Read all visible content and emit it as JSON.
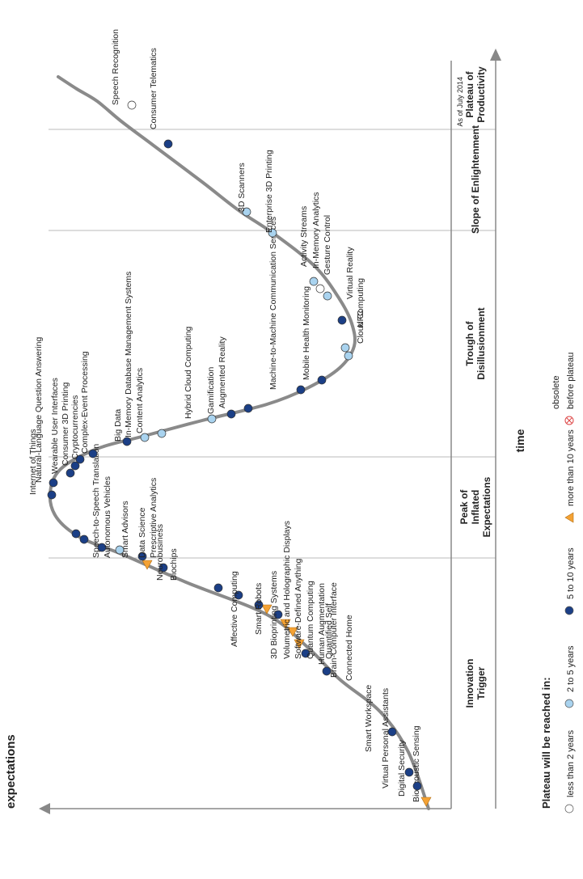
{
  "colors": {
    "curve": "#8a8a8a",
    "axis": "#555555",
    "less_than_2": "#ffffff",
    "two_to_5": "#a9d3ef",
    "five_to_10": "#1b3f86",
    "more_than_10": "#f4a234",
    "obsolete": "#e88a8a"
  },
  "chart_data": {
    "type": "scatter",
    "title": "",
    "ylabel": "expectations",
    "xlabel": "time",
    "as_of": "As of July 2014",
    "phases": [
      "Innovation Trigger",
      "Peak of Inflated Expectations",
      "Trough of Disillusionment",
      "Slope of Enlightenment",
      "Plateau of Productivity"
    ],
    "legend": {
      "title": "Plateau will be reached in:",
      "items": [
        {
          "label": "less than 2 years",
          "key": "less_than_2"
        },
        {
          "label": "2 to 5 years",
          "key": "two_to_5"
        },
        {
          "label": "5 to 10 years",
          "key": "five_to_10"
        },
        {
          "label": "more than 10 years",
          "key": "more_than_10"
        },
        {
          "label": "obsolete before plateau",
          "key": "obsolete"
        }
      ]
    },
    "technologies": [
      {
        "name": "Bioacoustic Sensing",
        "plateau": "more_than_10"
      },
      {
        "name": "Digital Security",
        "plateau": "five_to_10"
      },
      {
        "name": "Virtual Personal Assistants",
        "plateau": "five_to_10"
      },
      {
        "name": "Smart Workspace",
        "plateau": "five_to_10"
      },
      {
        "name": "Connected Home",
        "plateau": "five_to_10"
      },
      {
        "name": "Quantified Self",
        "plateau": "five_to_10"
      },
      {
        "name": "Brain-Computer Interface",
        "plateau": "more_than_10"
      },
      {
        "name": "Human Augmentation",
        "plateau": "more_than_10"
      },
      {
        "name": "Quantum Computing",
        "plateau": "more_than_10"
      },
      {
        "name": "Software-Defined Anything",
        "plateau": "five_to_10"
      },
      {
        "name": "Volumetric and Holographic Displays",
        "plateau": "more_than_10"
      },
      {
        "name": "3D Bioprinting Systems",
        "plateau": "five_to_10"
      },
      {
        "name": "Smart Robots",
        "plateau": "five_to_10"
      },
      {
        "name": "Affective Computing",
        "plateau": "five_to_10"
      },
      {
        "name": "Biochips",
        "plateau": "five_to_10"
      },
      {
        "name": "Neurobusiness",
        "plateau": "more_than_10"
      },
      {
        "name": "Prescriptive Analytics",
        "plateau": "five_to_10"
      },
      {
        "name": "Data Science",
        "plateau": "two_to_5"
      },
      {
        "name": "Smart Advisors",
        "plateau": "five_to_10"
      },
      {
        "name": "Autonomous Vehicles",
        "plateau": "five_to_10"
      },
      {
        "name": "Speech-to-Speech Translation",
        "plateau": "five_to_10"
      },
      {
        "name": "Internet of Things",
        "plateau": "five_to_10"
      },
      {
        "name": "Natural-Language Question Answering",
        "plateau": "five_to_10"
      },
      {
        "name": "Wearable User Interfaces",
        "plateau": "five_to_10"
      },
      {
        "name": "Consumer 3D Printing",
        "plateau": "five_to_10"
      },
      {
        "name": "Cryptocurrencies",
        "plateau": "five_to_10"
      },
      {
        "name": "Complex-Event Processing",
        "plateau": "five_to_10"
      },
      {
        "name": "Big Data",
        "plateau": "five_to_10"
      },
      {
        "name": "In-Memory Database Management Systems",
        "plateau": "two_to_5"
      },
      {
        "name": "Content Analytics",
        "plateau": "two_to_5"
      },
      {
        "name": "Hybrid Cloud Computing",
        "plateau": "two_to_5"
      },
      {
        "name": "Gamification",
        "plateau": "five_to_10"
      },
      {
        "name": "Augmented Reality",
        "plateau": "five_to_10"
      },
      {
        "name": "Machine-to-Machine Communication Services",
        "plateau": "five_to_10"
      },
      {
        "name": "Mobile Health Monitoring",
        "plateau": "five_to_10"
      },
      {
        "name": "Cloud Computing",
        "plateau": "two_to_5"
      },
      {
        "name": "NFC",
        "plateau": "two_to_5"
      },
      {
        "name": "Virtual Reality",
        "plateau": "five_to_10"
      },
      {
        "name": "Gesture Control",
        "plateau": "two_to_5"
      },
      {
        "name": "In-Memory Analytics",
        "plateau": "less_than_2"
      },
      {
        "name": "Activity Streams",
        "plateau": "two_to_5"
      },
      {
        "name": "Enterprise 3D Printing",
        "plateau": "two_to_5"
      },
      {
        "name": "3D Scanners",
        "plateau": "two_to_5"
      },
      {
        "name": "Consumer Telematics",
        "plateau": "five_to_10"
      },
      {
        "name": "Speech Recognition",
        "plateau": "less_than_2"
      }
    ]
  }
}
